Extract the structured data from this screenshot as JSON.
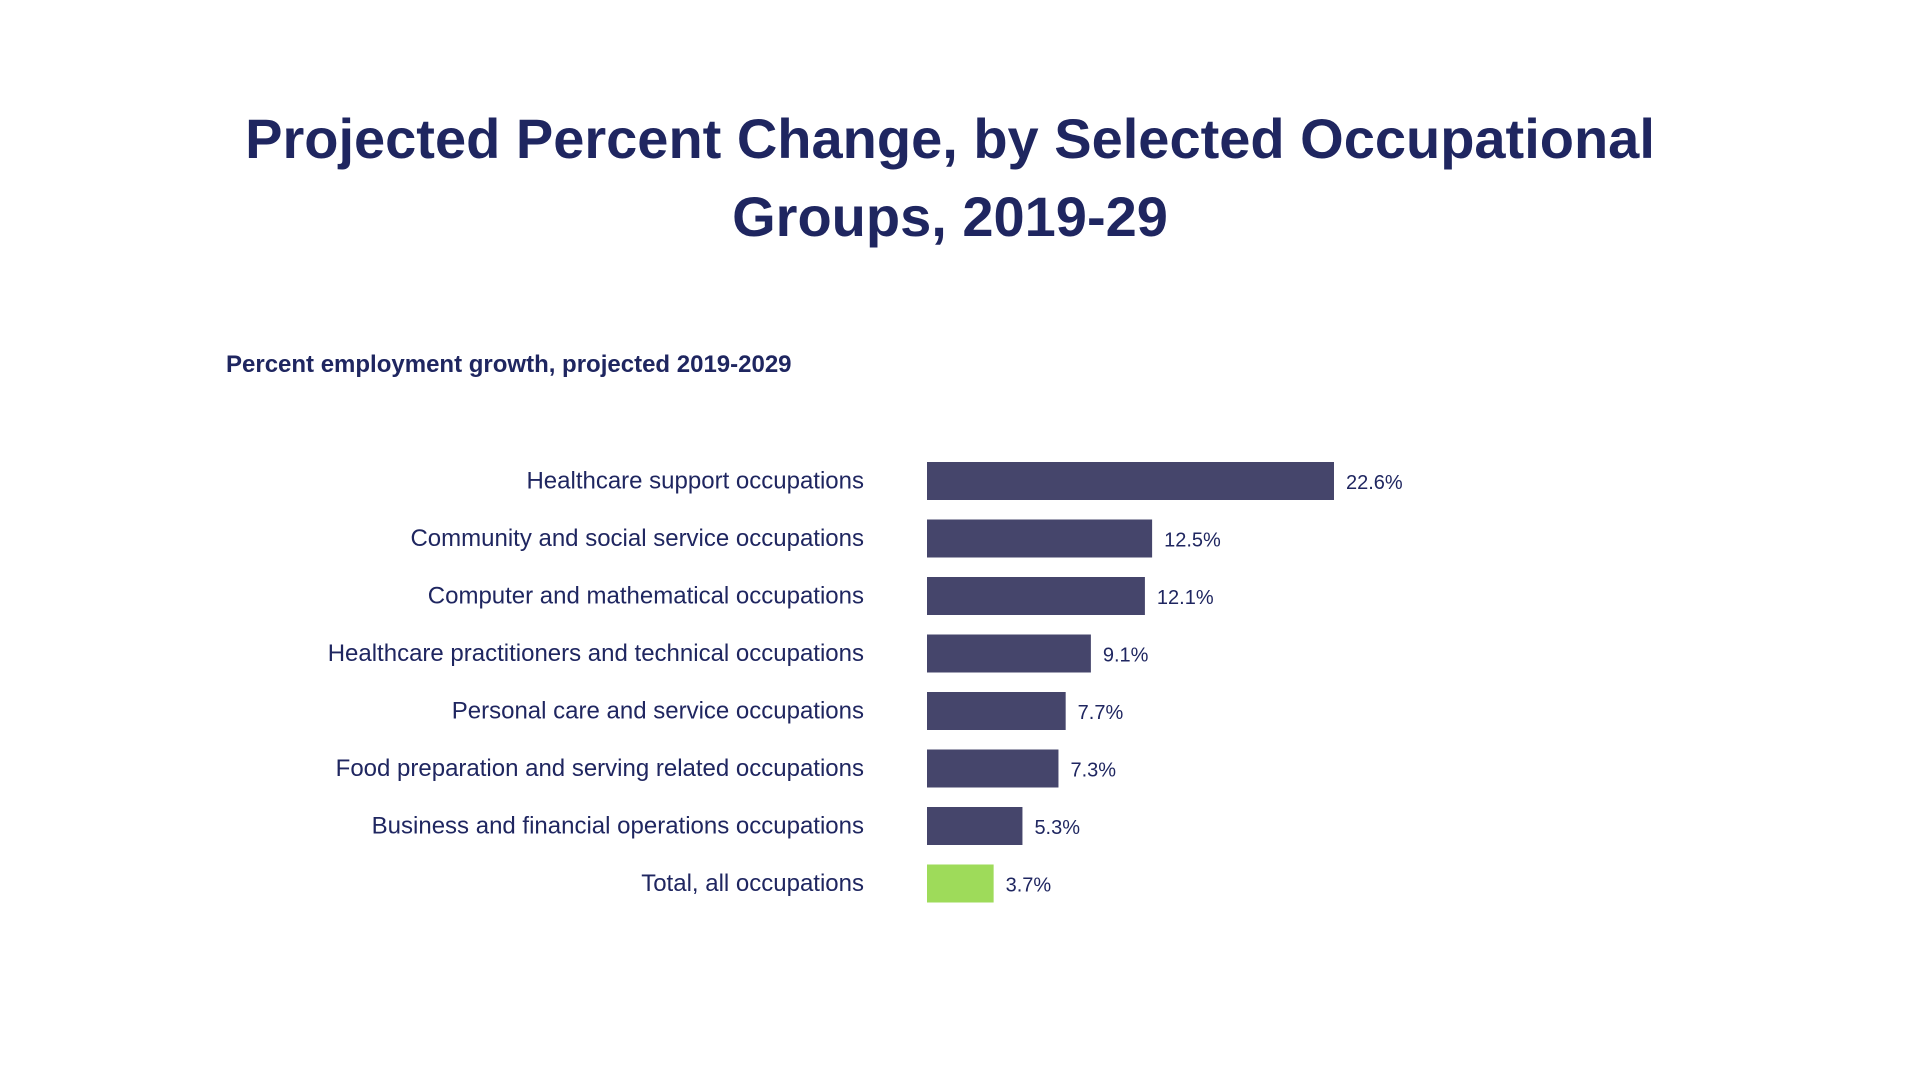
{
  "slide": {
    "title": "Projected Percent Change, by Selected Occupational Groups, 2019-29"
  },
  "chart_data": {
    "type": "bar",
    "orientation": "horizontal",
    "subtitle": "Percent employment growth, projected 2019-2029",
    "categories": [
      "Healthcare support occupations",
      "Community and social service occupations",
      "Computer and mathematical occupations",
      "Healthcare practitioners and technical occupations",
      "Personal care and service occupations",
      "Food preparation and serving related occupations",
      "Business and financial operations occupations",
      "Total, all occupations"
    ],
    "values": [
      22.6,
      12.5,
      12.1,
      9.1,
      7.7,
      7.3,
      5.3,
      3.7
    ],
    "value_labels": [
      "22.6%",
      "12.5%",
      "12.1%",
      "9.1%",
      "7.7%",
      "7.3%",
      "5.3%",
      "3.7%"
    ],
    "bar_colors": [
      "#45456b",
      "#45456b",
      "#45456b",
      "#45456b",
      "#45456b",
      "#45456b",
      "#45456b",
      "#9edb5a"
    ],
    "xlim": [
      0,
      22.6
    ],
    "grid": false,
    "legend": false
  },
  "colors": {
    "text": "#1f2660",
    "bar": "#45456b",
    "total_bar": "#9edb5a"
  }
}
